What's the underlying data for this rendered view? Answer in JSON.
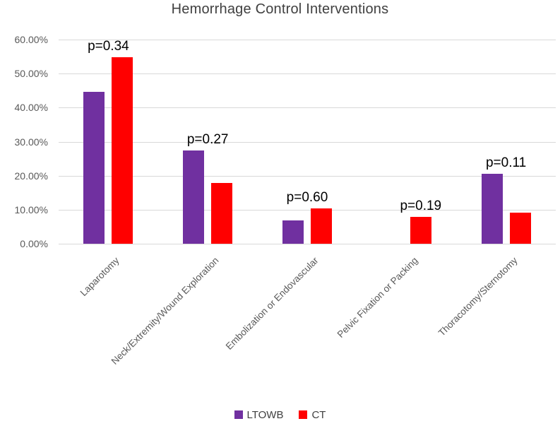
{
  "title": "Hemorrhage Control Interventions",
  "colors": {
    "ltowb": "#7030A0",
    "ct": "#FF0000",
    "grid": "#D9D9D9",
    "axis_text": "#595959",
    "title_text": "#404040",
    "p_text": "#000000",
    "legend_text": "#404040"
  },
  "legend": {
    "items": [
      {
        "key": "ltowb",
        "label": "LTOWB"
      },
      {
        "key": "ct",
        "label": "CT"
      }
    ]
  },
  "chart_data": {
    "type": "bar",
    "title": "Hemorrhage Control Interventions",
    "categories": [
      "Laparotomy",
      "Neck/Extremity/Wound Exploration",
      "Embolization or Endovascular",
      "Pelvic Fixation or Packing",
      "Thoracotomy/Sternotomy"
    ],
    "series": [
      {
        "name": "LTOWB",
        "color_key": "ltowb",
        "values": [
          44.6,
          27.5,
          6.8,
          0,
          20.5
        ]
      },
      {
        "name": "CT",
        "color_key": "ct",
        "values": [
          54.8,
          17.9,
          10.3,
          7.8,
          9.1
        ]
      }
    ],
    "p_value_labels": [
      "p=0.34",
      "p=0.27",
      "p=0.60",
      "p=0.19",
      "p=0.11"
    ],
    "y_tick_labels": [
      "0.00%",
      "10.00%",
      "20.00%",
      "30.00%",
      "40.00%",
      "50.00%",
      "60.00%"
    ],
    "ylim": [
      0,
      60
    ],
    "y_tick_step": 10,
    "unit": "%",
    "grid": true,
    "legend_position": "bottom"
  }
}
